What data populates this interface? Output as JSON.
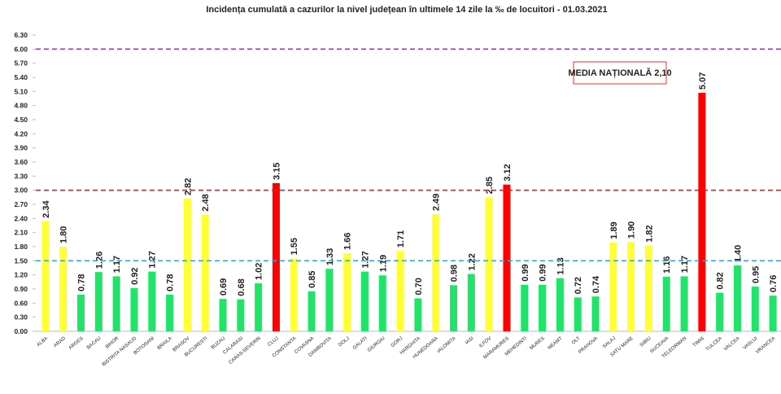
{
  "chart_data": {
    "type": "bar",
    "title": "Incidența cumulată a cazurilor la nivel județean în ultimele 14 zile la ‰ de locuitori - 01.03.2021",
    "annotation": "MEDIA NAȚIONALĂ 2,10",
    "categories": [
      "ALBA",
      "ARAD",
      "ARGES",
      "BACAU",
      "BIHOR",
      "BISTRITA NASAUD",
      "BOTOSANI",
      "BRAILA",
      "BRASOV",
      "BUCURESTI",
      "BUZAU",
      "CALARASI",
      "CARAS-SEVERIN",
      "CLUJ",
      "CONSTANTA",
      "COVASNA",
      "DAMBOVITA",
      "DOLJ",
      "GALATI",
      "GIURGIU",
      "GORJ",
      "HARGHITA",
      "HUNEDOARA",
      "IALOMITA",
      "IASI",
      "ILFOV",
      "MARAMURES",
      "MEHEDINTI",
      "MURES",
      "NEAMT",
      "OLT",
      "PRAHOVA",
      "SALAJ",
      "SATU MARE",
      "SIBIU",
      "SUCEAVA",
      "TELEORMAN",
      "TIMIS",
      "TULCEA",
      "VALCEA",
      "VASLUI",
      "VRANCEA"
    ],
    "values": [
      2.34,
      1.8,
      0.78,
      1.26,
      1.17,
      0.92,
      1.27,
      0.78,
      2.82,
      2.48,
      0.69,
      0.68,
      1.02,
      3.15,
      1.55,
      0.85,
      1.33,
      1.66,
      1.27,
      1.19,
      1.71,
      0.7,
      2.49,
      0.98,
      1.22,
      2.85,
      3.12,
      0.99,
      0.99,
      1.13,
      0.72,
      0.74,
      1.89,
      1.9,
      1.82,
      1.16,
      1.17,
      5.07,
      0.82,
      1.4,
      0.95,
      0.76
    ],
    "value_labels": [
      "2.34",
      "1.80",
      "0.78",
      "1.26",
      "1.17",
      "0.92",
      "1.27",
      "0.78",
      "2.82",
      "2.48",
      "0.69",
      "0.68",
      "1.02",
      "3.15",
      "1.55",
      "0.85",
      "1.33",
      "1.66",
      "1.27",
      "1.19",
      "1.71",
      "0.70",
      "2.49",
      "0.98",
      "1.22",
      "2.85",
      "3.12",
      "0.99",
      "0.99",
      "1.13",
      "0.72",
      "0.74",
      "1.89",
      "1.90",
      "1.82",
      "1.16",
      "1.17",
      "5.07",
      "0.82",
      "1.40",
      "0.95",
      "0.76"
    ],
    "colors": [
      "#ffff33",
      "#ffff33",
      "#22e36a",
      "#22e36a",
      "#22e36a",
      "#22e36a",
      "#22e36a",
      "#22e36a",
      "#ffff33",
      "#ffff33",
      "#22e36a",
      "#22e36a",
      "#22e36a",
      "#ff0000",
      "#ffff33",
      "#22e36a",
      "#22e36a",
      "#ffff33",
      "#22e36a",
      "#22e36a",
      "#ffff33",
      "#22e36a",
      "#ffff33",
      "#22e36a",
      "#22e36a",
      "#ffff33",
      "#ff0000",
      "#22e36a",
      "#22e36a",
      "#22e36a",
      "#22e36a",
      "#22e36a",
      "#ffff33",
      "#ffff33",
      "#ffff33",
      "#22e36a",
      "#22e36a",
      "#ff0000",
      "#22e36a",
      "#22e36a",
      "#22e36a",
      "#22e36a"
    ],
    "ylim": [
      0,
      6.3
    ],
    "yticks": [
      {
        "value": 0,
        "label": "0.00"
      },
      {
        "value": 0.3,
        "label": "0.30"
      },
      {
        "value": 0.6,
        "label": "0.60"
      },
      {
        "value": 0.9,
        "label": "0.90"
      },
      {
        "value": 1.2,
        "label": "1.20"
      },
      {
        "value": 1.5,
        "label": "1.50"
      },
      {
        "value": 1.8,
        "label": "1.80"
      },
      {
        "value": 2.1,
        "label": "2.10"
      },
      {
        "value": 2.4,
        "label": "2.40"
      },
      {
        "value": 2.7,
        "label": "2.70"
      },
      {
        "value": 3.0,
        "label": "3.00"
      },
      {
        "value": 3.3,
        "label": "3.30"
      },
      {
        "value": 3.6,
        "label": "3.60"
      },
      {
        "value": 3.9,
        "label": "3.90"
      },
      {
        "value": 4.2,
        "label": "4.20"
      },
      {
        "value": 4.5,
        "label": "4.50"
      },
      {
        "value": 4.8,
        "label": "4.80"
      },
      {
        "value": 5.1,
        "label": "5.10"
      },
      {
        "value": 5.4,
        "label": "5.40"
      },
      {
        "value": 5.7,
        "label": "5.70"
      },
      {
        "value": 6.0,
        "label": "6.00"
      },
      {
        "value": 6.3,
        "label": "6.30"
      }
    ],
    "reference_lines": [
      {
        "value": 1.5,
        "color": "#33aadd"
      },
      {
        "value": 3.0,
        "color": "#e02020"
      },
      {
        "value": 6.0,
        "color": "#8844bb"
      }
    ],
    "grid": false
  }
}
